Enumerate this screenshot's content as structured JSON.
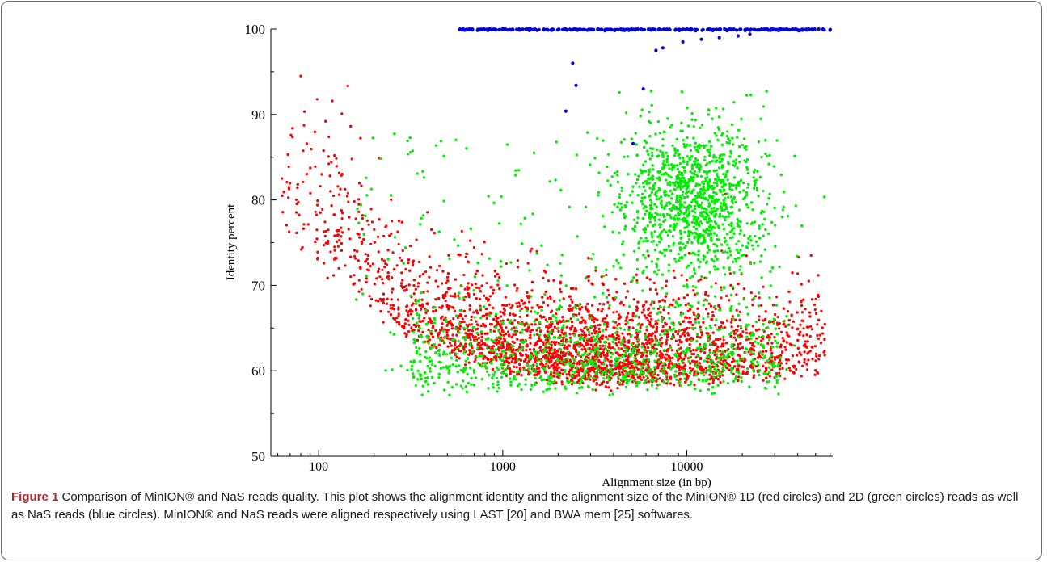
{
  "figure": {
    "label": "Figure 1",
    "caption": "Comparison of MinION® and NaS reads quality. This plot shows the alignment identity and the alignment size of the MinION® 1D (red circles) and 2D (green circles) reads as well as NaS reads (blue circles). MinION® and NaS reads were aligned respectively using LAST [20] and BWA mem [25] softwares."
  },
  "chart_data": {
    "type": "scatter",
    "xlabel": "Alignment size (in bp)",
    "ylabel": "Identity percent",
    "xscale": "log",
    "xlim": [
      55,
      62000
    ],
    "ylim": [
      50,
      100
    ],
    "x_ticks": [
      {
        "value": 100,
        "label": "100"
      },
      {
        "value": 1000,
        "label": "1000"
      },
      {
        "value": 10000,
        "label": "10000"
      }
    ],
    "y_ticks": [
      {
        "value": 50,
        "label": "50"
      },
      {
        "value": 60,
        "label": "60"
      },
      {
        "value": 70,
        "label": "70"
      },
      {
        "value": 80,
        "label": "80"
      },
      {
        "value": 90,
        "label": "90"
      },
      {
        "value": 100,
        "label": "100"
      }
    ],
    "grid": false,
    "series": [
      {
        "key": "1D",
        "color": "#ff0000",
        "distribution": {
          "count": 4200,
          "log10_x_range": [
            1.8,
            4.75
          ],
          "identity_floor_at_log10_x": [
            [
              1.85,
              72
            ],
            [
              2.5,
              63
            ],
            [
              3.0,
              59
            ],
            [
              3.5,
              57.5
            ],
            [
              4.0,
              58
            ],
            [
              4.6,
              59
            ]
          ],
          "identity_typical": 64
        }
      },
      {
        "key": "2D",
        "color": "#00ee00",
        "distribution": {
          "count": 4200,
          "main_cluster": {
            "log10_x_center": 4.03,
            "identity_center": 80,
            "log10_x_spread": 0.2,
            "identity_spread": 4.5
          },
          "low_band": {
            "log10_x_range": [
              2.5,
              4.5
            ],
            "identity_range": [
              57,
              70
            ]
          },
          "identity_max": 93
        }
      },
      {
        "key": "NaS",
        "color": "#0000dd",
        "distribution": {
          "count": 320,
          "log10_x_range": [
            2.73,
            4.78
          ],
          "identity_main": 100,
          "outliers": [
            {
              "x": 2400,
              "y": 96.0
            },
            {
              "x": 2500,
              "y": 93.4
            },
            {
              "x": 2200,
              "y": 90.4
            },
            {
              "x": 5800,
              "y": 93.0
            },
            {
              "x": 5100,
              "y": 86.6
            },
            {
              "x": 6800,
              "y": 97.5
            },
            {
              "x": 7400,
              "y": 97.8
            },
            {
              "x": 9500,
              "y": 98.5
            },
            {
              "x": 12000,
              "y": 98.8
            },
            {
              "x": 15000,
              "y": 99.0
            },
            {
              "x": 19000,
              "y": 99.2
            },
            {
              "x": 22000,
              "y": 99.4
            }
          ]
        }
      }
    ]
  }
}
